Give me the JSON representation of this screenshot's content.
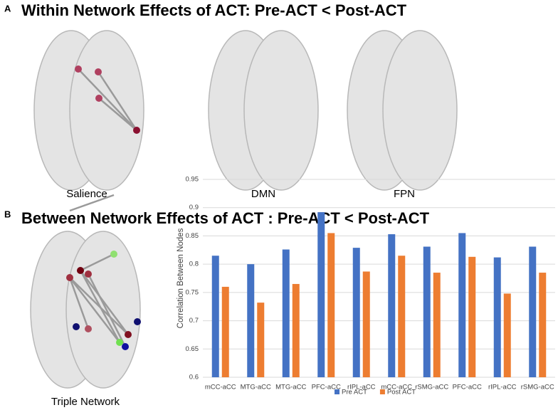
{
  "panel_a": {
    "letter": "A",
    "title": "Within Network Effects of ACT: Pre-ACT < Post-ACT",
    "labels": [
      "Salience",
      "DMN",
      "FPN"
    ]
  },
  "panel_b": {
    "letter": "B",
    "title": "Between Network Effects of ACT : Pre-ACT < Post-ACT",
    "label": "Triple Network"
  },
  "chart_data": {
    "type": "bar",
    "y_label": "Correlation Between Nodes",
    "categories": [
      "mCC-aCC",
      "MTG-aCC",
      "MTG-aCC",
      "PFC-aCC",
      "rIPL-aCC",
      "mCC-aCC",
      "rSMG-aCC",
      "PFC-aCC",
      "rIPL-aCC",
      "rSMG-aCC"
    ],
    "series": [
      {
        "name": "Pre ACT",
        "color": "#4472c4",
        "values": [
          0.815,
          0.8,
          0.826,
          0.892,
          0.829,
          0.853,
          0.831,
          0.855,
          0.812,
          0.831
        ]
      },
      {
        "name": "Post ACT",
        "color": "#ed7d31",
        "values": [
          0.76,
          0.732,
          0.765,
          0.855,
          0.787,
          0.815,
          0.785,
          0.813,
          0.748,
          0.785
        ]
      }
    ],
    "ylim": [
      0.6,
      0.95
    ],
    "yticks": [
      0.6,
      0.65,
      0.7,
      0.75,
      0.8,
      0.85,
      0.9,
      0.95
    ],
    "grid": true,
    "legend": "bottom"
  }
}
